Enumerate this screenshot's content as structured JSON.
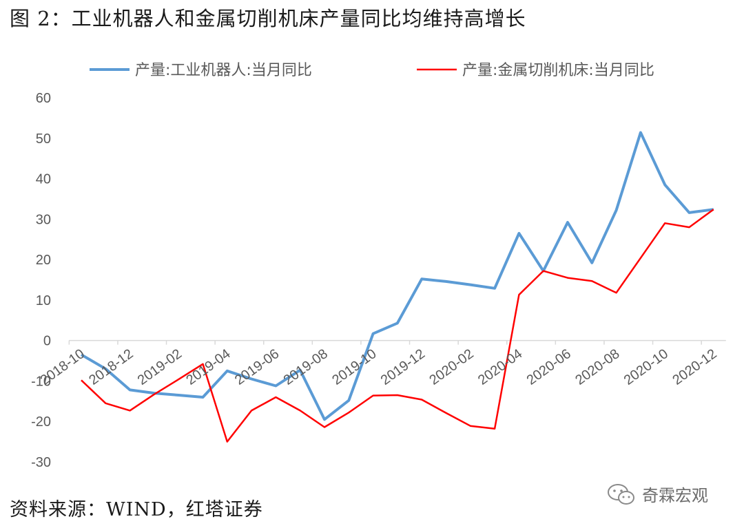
{
  "figure_title": "图 2：工业机器人和金属切削机床产量同比均维持高增长",
  "source_note": "资料来源：WIND，红塔证券",
  "watermark": {
    "text": "奇霖宏观",
    "icon": "wechat-icon"
  },
  "chart_data": {
    "type": "line",
    "title": "",
    "xlabel": "",
    "ylabel": "",
    "ylim": [
      -30,
      60
    ],
    "yticks": [
      60,
      50,
      40,
      30,
      20,
      10,
      0,
      -10,
      -20,
      -30
    ],
    "grid": false,
    "legend_position": "top",
    "x": [
      "2018-10",
      "2018-11",
      "2018-12",
      "2019-01",
      "2019-02",
      "2019-03",
      "2019-04",
      "2019-05",
      "2019-06",
      "2019-07",
      "2019-08",
      "2019-09",
      "2019-10",
      "2019-11",
      "2019-12",
      "2020-01",
      "2020-02",
      "2020-03",
      "2020-04",
      "2020-05",
      "2020-06",
      "2020-07",
      "2020-08",
      "2020-09",
      "2020-10",
      "2020-11",
      "2020-12"
    ],
    "x_tick_labels": [
      "2018-10",
      "2018-12",
      "2019-02",
      "2019-04",
      "2019-06",
      "2019-08",
      "2019-10",
      "2019-12",
      "2020-02",
      "2020-04",
      "2020-06",
      "2020-08",
      "2020-10",
      "2020-12"
    ],
    "series": [
      {
        "name": "产量:工业机器人:当月同比",
        "color": "#5b9bd5",
        "values": [
          -3.5,
          -7,
          -12.2,
          -13,
          -13.5,
          -14,
          -7.5,
          -9.5,
          -11.2,
          -7.3,
          -19.5,
          -14.8,
          1.7,
          4.3,
          15.2,
          14.6,
          13.8,
          12.9,
          26.5,
          17.2,
          29.2,
          19.2,
          32.2,
          51.4,
          38.5,
          31.6,
          32.4
        ]
      },
      {
        "name": "产量:金属切削机床:当月同比",
        "color": "#ff0000",
        "values": [
          -9.8,
          -15.5,
          -17.3,
          -13.3,
          -9.6,
          -5.8,
          -25,
          -17.3,
          -14,
          -17.3,
          -21.4,
          -17.8,
          -13.6,
          -13.5,
          -14.6,
          -17.9,
          -21.1,
          -21.8,
          11.3,
          17.2,
          15.5,
          14.7,
          11.8,
          20.4,
          29,
          28,
          32.4
        ]
      }
    ]
  }
}
